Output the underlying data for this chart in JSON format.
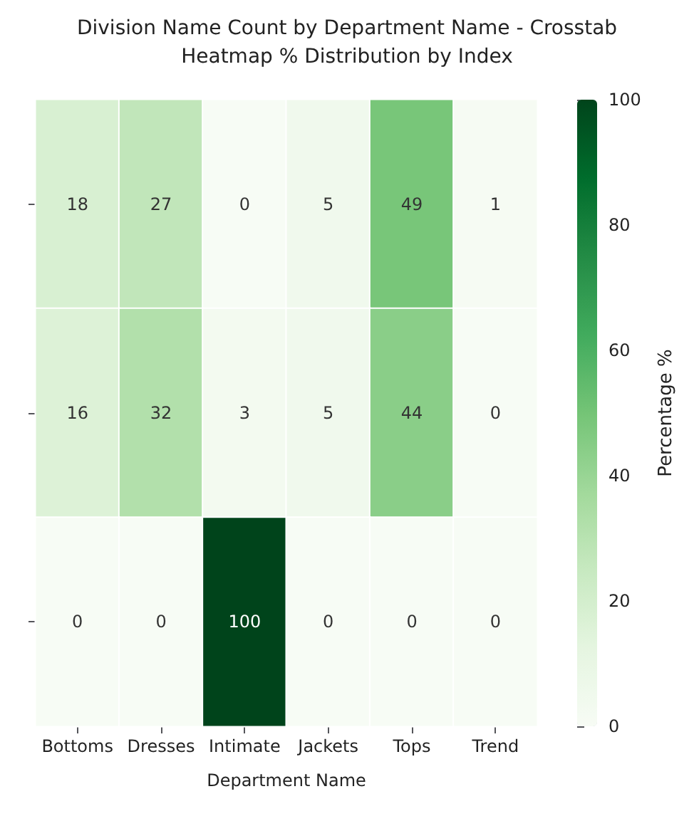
{
  "chart_data": {
    "type": "heatmap",
    "title": "Division Name Count by Department Name - Crosstab",
    "subtitle": "Heatmap % Distribution by Index",
    "xlabel": "Department Name",
    "clabel": "Percentage %",
    "categories": [
      "Bottoms",
      "Dresses",
      "Intimate",
      "Jackets",
      "Tops",
      "Trend"
    ],
    "y_categories": [
      null,
      null,
      null
    ],
    "cells": [
      [
        18,
        27,
        0,
        5,
        49,
        1
      ],
      [
        16,
        32,
        3,
        5,
        44,
        0
      ],
      [
        0,
        0,
        100,
        0,
        0,
        0
      ]
    ],
    "clim": [
      0,
      100
    ],
    "cticks": [
      0,
      20,
      40,
      60,
      80,
      100
    ],
    "data_labels": true
  }
}
